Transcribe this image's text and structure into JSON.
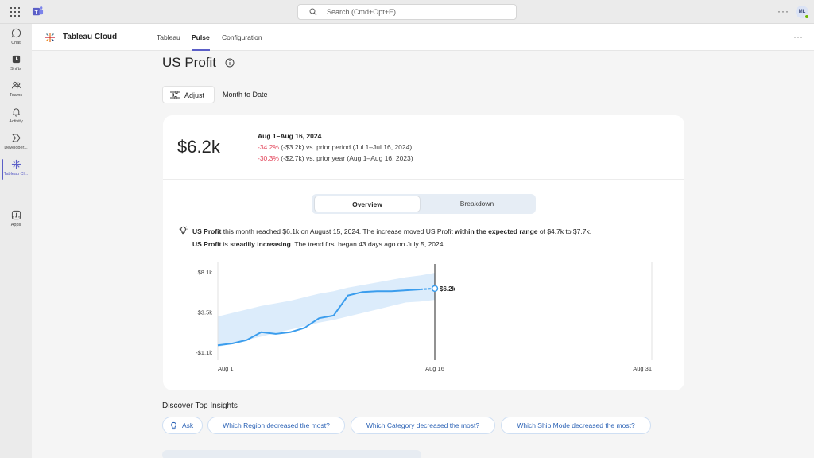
{
  "topbar": {
    "search_placeholder": "Search (Cmd+Opt+E)",
    "avatar_initials": "ML"
  },
  "rail": {
    "items": [
      {
        "label": "Chat",
        "icon": "chat-icon"
      },
      {
        "label": "Shifts",
        "icon": "shifts-icon"
      },
      {
        "label": "Teams",
        "icon": "teams-icon"
      },
      {
        "label": "Activity",
        "icon": "bell-icon"
      },
      {
        "label": "Developer...",
        "icon": "developer-icon"
      },
      {
        "label": "Tableau Cl...",
        "icon": "tableau-icon"
      },
      {
        "label": "Apps",
        "icon": "plus-icon"
      }
    ]
  },
  "app": {
    "name": "Tableau Cloud",
    "tabs": [
      "Tableau",
      "Pulse",
      "Configuration"
    ],
    "active_tab": "Pulse"
  },
  "page": {
    "title": "US Profit",
    "adjust_label": "Adjust",
    "period_label": "Month to Date"
  },
  "summary": {
    "value": "$6.2k",
    "date_range": "Aug 1–Aug 16, 2024",
    "cmp1_pct": "-34.2%",
    "cmp1_rest": " (-$3.2k) vs. prior period (Jul 1–Jul 16, 2024)",
    "cmp2_pct": "-30.3%",
    "cmp2_rest": " (-$2.7k) vs. prior year (Aug 1–Aug 16, 2023)"
  },
  "segmented": {
    "overview": "Overview",
    "breakdown": "Breakdown"
  },
  "insight": {
    "l1_a": "US Profit",
    "l1_b": " this month reached $6.1k on August 15, 2024. The increase moved US Profit ",
    "l1_c": "within the expected range",
    "l1_d": " of $4.7k to $7.7k.",
    "l2_a": "US Profit",
    "l2_b": " is ",
    "l2_c": "steadily increasing",
    "l2_d": ". The trend first began 43 days ago on July 5, 2024."
  },
  "chart_data": {
    "type": "line",
    "y_ticks": [
      "$8.1k",
      "$3.5k",
      "-$1.1k"
    ],
    "x_ticks": [
      "Aug 1",
      "Aug 16",
      "Aug 31"
    ],
    "ylim": [
      -1.1,
      8.1
    ],
    "x": [
      1,
      2,
      3,
      4,
      5,
      6,
      7,
      8,
      9,
      10,
      11,
      12,
      13,
      14,
      15,
      16
    ],
    "values": [
      -0.3,
      -0.1,
      0.3,
      1.2,
      1.0,
      1.2,
      1.7,
      2.8,
      3.1,
      5.4,
      5.8,
      5.9,
      5.9,
      6.0,
      6.1,
      6.2
    ],
    "band_low": [
      -0.5,
      -0.1,
      0.3,
      0.7,
      1.1,
      1.5,
      1.9,
      2.3,
      2.6,
      3.0,
      3.4,
      3.8,
      4.2,
      4.6,
      4.7,
      4.9
    ],
    "band_high": [
      3.0,
      3.4,
      3.8,
      4.2,
      4.5,
      4.8,
      5.2,
      5.6,
      5.9,
      6.3,
      6.6,
      6.9,
      7.2,
      7.5,
      7.7,
      8.0
    ],
    "current_label": "$6.2k",
    "xlim": [
      1,
      31
    ],
    "colors": {
      "line": "#3b9ded",
      "band": "#dcecfb"
    }
  },
  "discover": {
    "title": "Discover Top Insights",
    "ask": "Ask",
    "q1": "Which Region decreased the most?",
    "q2": "Which Category decreased the most?",
    "q3": "Which Ship Mode decreased the most?"
  }
}
